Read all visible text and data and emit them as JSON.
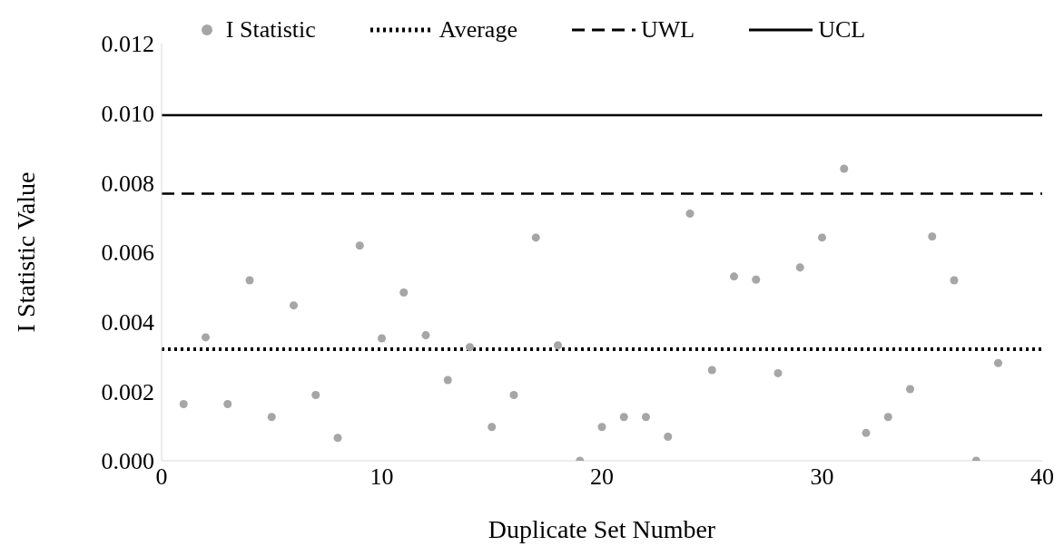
{
  "chart_data": {
    "type": "scatter",
    "xlabel": "Duplicate Set Number",
    "ylabel": "I Statistic Value",
    "xlim": [
      0,
      40
    ],
    "xticks": [
      0,
      10,
      20,
      30,
      40
    ],
    "ylim": [
      0,
      0.012
    ],
    "yticks": [
      {
        "value": 0,
        "label": "0.000"
      },
      {
        "value": 0.002,
        "label": "0.002"
      },
      {
        "value": 0.004,
        "label": "0.004"
      },
      {
        "value": 0.006,
        "label": "0.006"
      },
      {
        "value": 0.008,
        "label": "0.008"
      },
      {
        "value": 0.01,
        "label": "0.010"
      },
      {
        "value": 0.012,
        "label": "0.012"
      }
    ],
    "grid": false,
    "legend": "top",
    "series": [
      {
        "name": "I Statistic",
        "marker": "circle",
        "color": "#a6a6a6",
        "x": [
          1,
          2,
          3,
          4,
          5,
          6,
          7,
          8,
          9,
          10,
          11,
          12,
          13,
          14,
          15,
          16,
          17,
          18,
          19,
          20,
          21,
          22,
          23,
          24,
          25,
          26,
          27,
          28,
          29,
          30,
          31,
          32,
          33,
          34,
          35,
          36,
          37,
          38
        ],
        "values": [
          0.00163,
          0.00355,
          0.00163,
          0.00519,
          0.00126,
          0.00447,
          0.00189,
          0.00066,
          0.00619,
          0.00352,
          0.00484,
          0.00361,
          0.00232,
          0.00327,
          0.00097,
          0.00189,
          0.00642,
          0.00332,
          0,
          0.00097,
          0.00126,
          0.00126,
          0.00069,
          0.00711,
          0.00261,
          0.0053,
          0.00521,
          0.00252,
          0.00556,
          0.00642,
          0.0084,
          0.0008,
          0.00126,
          0.00206,
          0.00645,
          0.00519,
          0,
          0.00281
        ]
      },
      {
        "name": "Average",
        "type": "line",
        "line_style": "dotted",
        "color": "#000000",
        "x": [
          0,
          40
        ],
        "values": [
          0.00321,
          0.00321
        ]
      },
      {
        "name": "UWL",
        "type": "line",
        "line_style": "dashed",
        "color": "#000000",
        "x": [
          0,
          40
        ],
        "values": [
          0.00768,
          0.00768
        ]
      },
      {
        "name": "UCL",
        "type": "line",
        "line_style": "solid",
        "color": "#000000",
        "x": [
          0,
          40
        ],
        "values": [
          0.00994,
          0.00994
        ]
      }
    ]
  }
}
